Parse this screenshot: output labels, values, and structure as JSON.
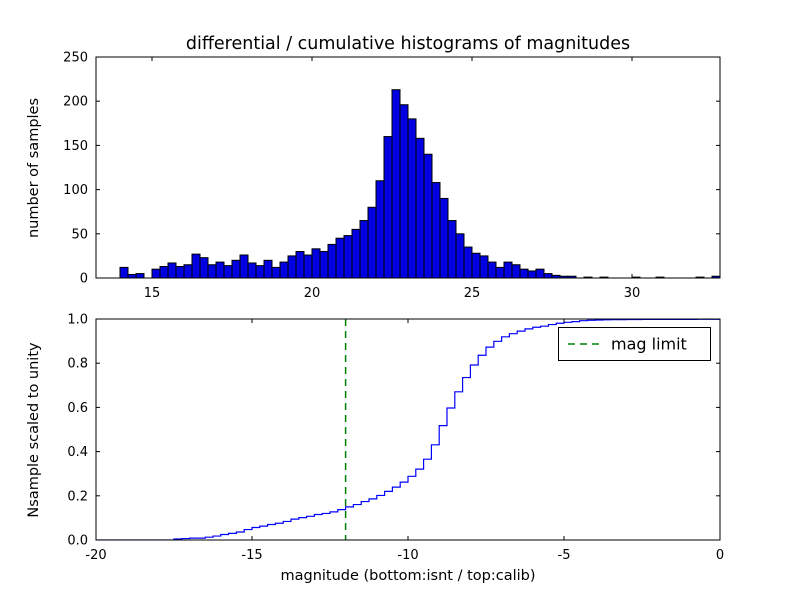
{
  "figure": {
    "background": "#ffffff"
  },
  "chart_data": [
    {
      "type": "bar",
      "title": "differential / cumulative histograms of magnitudes",
      "ylabel": "number of samples",
      "xlim": [
        13.25,
        32.75
      ],
      "ylim": [
        0,
        250
      ],
      "xticks": [
        15,
        20,
        25,
        30
      ],
      "xtick_labels": [
        "15",
        "20",
        "25",
        "30"
      ],
      "yticks": [
        0,
        50,
        100,
        150,
        200,
        250
      ],
      "ytick_labels": [
        "0",
        "50",
        "100",
        "150",
        "200",
        "250"
      ],
      "grid": false,
      "bar_fill": "#0000e0",
      "bar_edge": "#000000",
      "bin_start": 14.0,
      "bin_width": 0.25,
      "counts": [
        12,
        4,
        5,
        0,
        10,
        13,
        17,
        13,
        15,
        27,
        23,
        15,
        18,
        14,
        20,
        26,
        17,
        14,
        20,
        12,
        18,
        25,
        30,
        26,
        33,
        30,
        38,
        45,
        48,
        55,
        65,
        80,
        110,
        160,
        213,
        196,
        180,
        158,
        140,
        108,
        90,
        65,
        50,
        35,
        28,
        25,
        18,
        12,
        18,
        15,
        10,
        8,
        10,
        5,
        3,
        2,
        2,
        0,
        1,
        0,
        1,
        0,
        0,
        0,
        1,
        0,
        0,
        1,
        0,
        0,
        0,
        0,
        1,
        0,
        2
      ]
    },
    {
      "type": "line",
      "ylabel": "Nsample scaled to unity",
      "xlabel": "magnitude (bottom:isnt / top:calib)",
      "xlim": [
        -20,
        0
      ],
      "ylim": [
        0.0,
        1.0
      ],
      "xticks": [
        -20,
        -15,
        -10,
        -5,
        0
      ],
      "xtick_labels": [
        "-20",
        "-15",
        "-10",
        "-5",
        "0"
      ],
      "yticks": [
        0.0,
        0.2,
        0.4,
        0.6,
        0.8,
        1.0
      ],
      "ytick_labels": [
        "0.0",
        "0.2",
        "0.4",
        "0.6",
        "0.8",
        "1.0"
      ],
      "grid": false,
      "line_color": "#0000ff",
      "cumulative": {
        "derived_from_top_histogram": true,
        "x_shift": -31.5
      },
      "vline": {
        "x": -12,
        "color": "#008000",
        "style": "dashed",
        "label": "mag limit"
      },
      "legend": {
        "label": "mag limit",
        "position": "upper right"
      }
    }
  ]
}
